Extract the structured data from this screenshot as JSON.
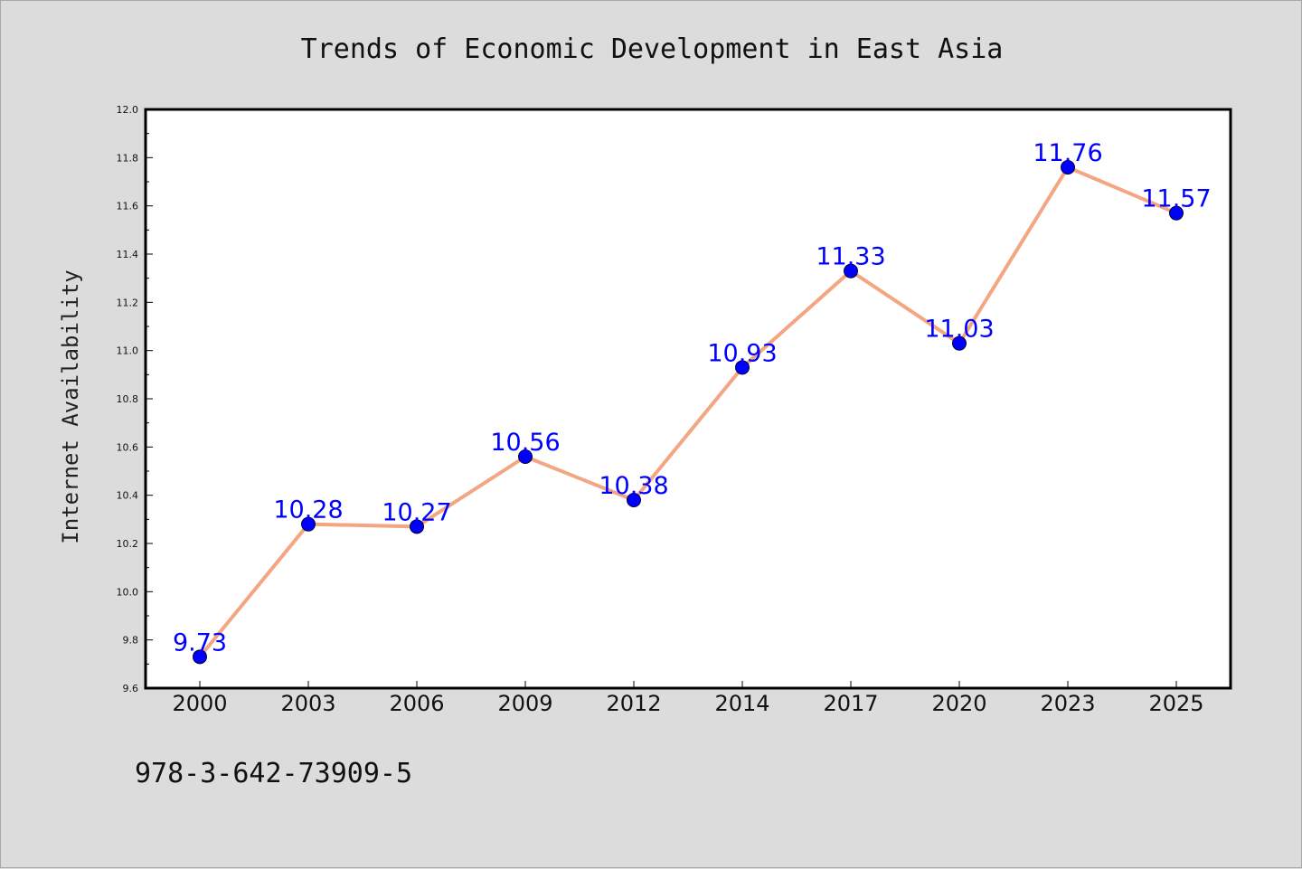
{
  "chart_data": {
    "type": "line",
    "title": "Trends of Economic Development in East Asia",
    "xlabel": "",
    "ylabel": "Internet Availability",
    "categories": [
      "2000",
      "2003",
      "2006",
      "2009",
      "2012",
      "2014",
      "2017",
      "2020",
      "2023",
      "2025"
    ],
    "series": [
      {
        "values": [
          9.73,
          10.28,
          10.27,
          10.56,
          10.38,
          10.93,
          11.33,
          11.03,
          11.76,
          11.57
        ],
        "data_labels": [
          "9.73",
          "10.28",
          "10.27",
          "10.56",
          "10.38",
          "10.93",
          "11.33",
          "11.03",
          "11.76",
          "11.57"
        ],
        "line_color": "#f4a582",
        "marker_color": "#0000ff"
      }
    ],
    "ylim": [
      9.6,
      12.0
    ],
    "yticks": [
      "9.6",
      "9.8",
      "10.0",
      "10.2",
      "10.4",
      "10.6",
      "10.8",
      "11.0",
      "11.2",
      "11.4",
      "11.6",
      "11.8",
      "12.0"
    ],
    "label_color": "#0000ff",
    "grid": false,
    "legend": "none"
  },
  "footer": {
    "isbn": "978-3-642-73909-5"
  }
}
